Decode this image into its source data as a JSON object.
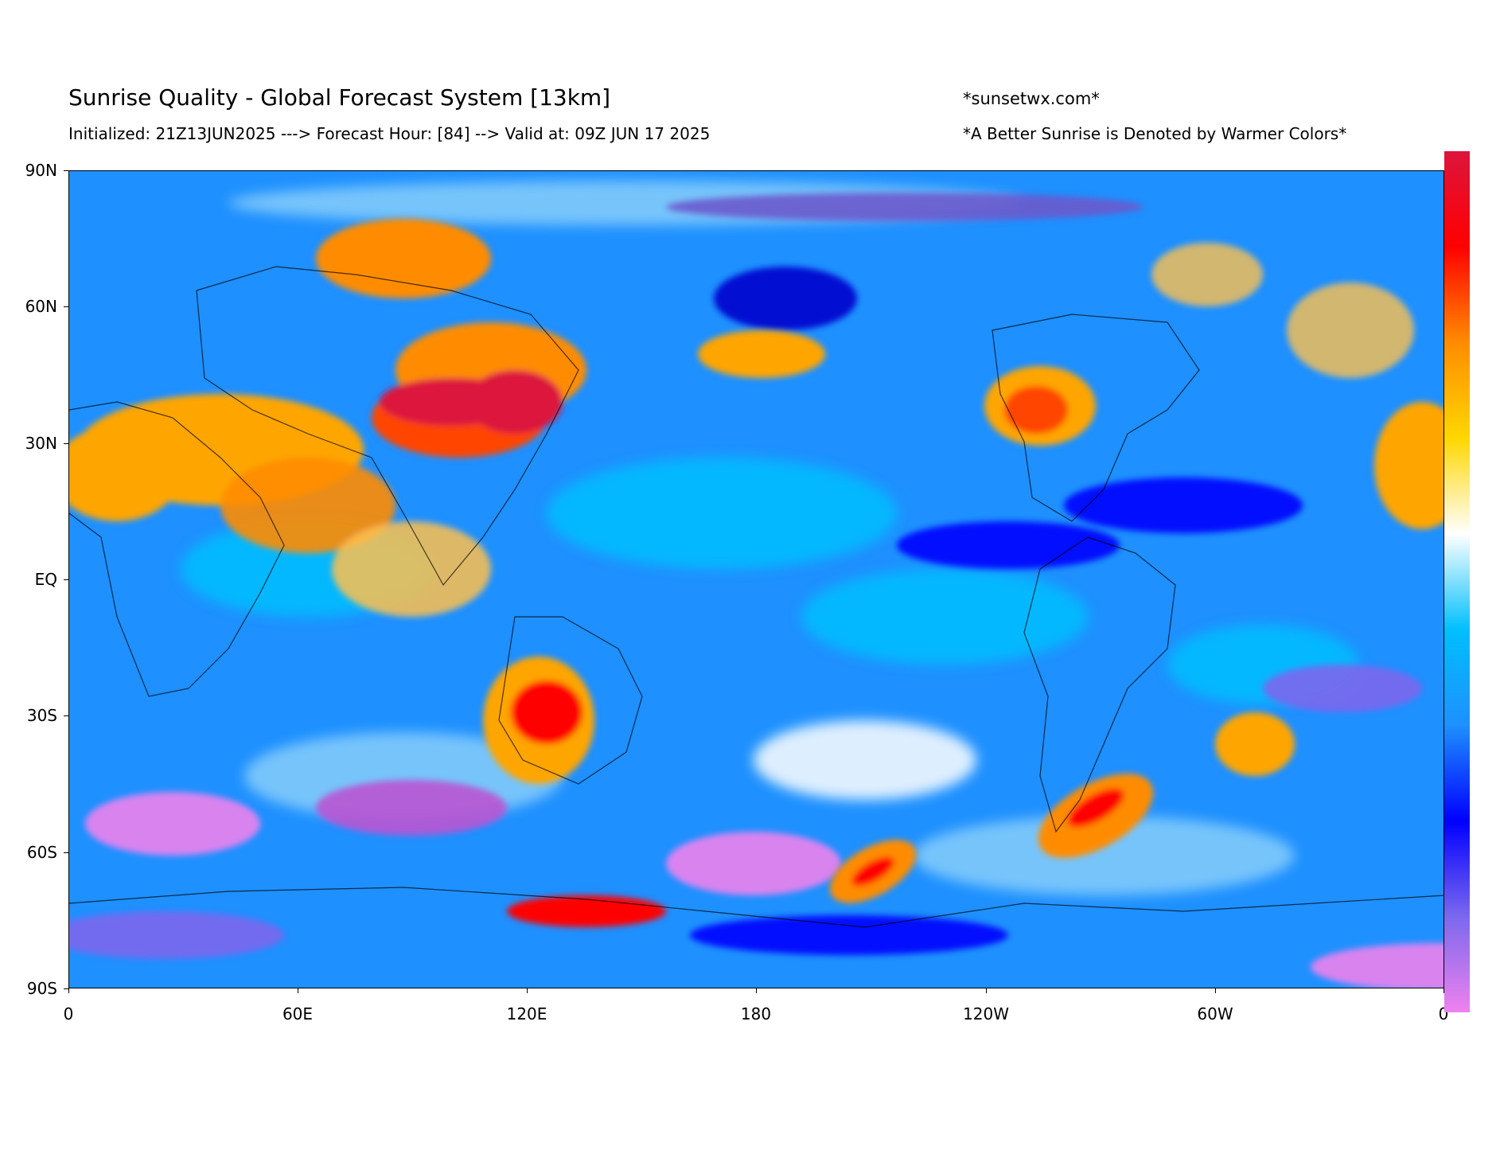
{
  "header": {
    "title": "Sunrise Quality - Global Forecast System [13km]",
    "subtitle": "Initialized: 21Z13JUN2025 ---> Forecast Hour: [84] --> Valid at: 09Z JUN 17 2025",
    "site": "*sunsetwx.com*",
    "note": "*A Better Sunrise is Denoted by Warmer Colors*"
  },
  "axes": {
    "y_ticks": [
      "90N",
      "60N",
      "30N",
      "EQ",
      "30S",
      "60S",
      "90S"
    ],
    "x_ticks": [
      "0",
      "60E",
      "120E",
      "180",
      "120W",
      "60W",
      "0"
    ]
  },
  "colors": {
    "ocean_base": "#1e90ff",
    "colorbar_stops": [
      "#ee82ee",
      "#7b68ee",
      "#0000ff",
      "#1e90ff",
      "#00bfff",
      "#ffffff",
      "#ffd700",
      "#ff8c00",
      "#ff0000",
      "#dc143c"
    ]
  },
  "map": {
    "projection": "equirectangular",
    "lon_range": [
      0,
      360
    ],
    "lat_range": [
      -90,
      90
    ]
  }
}
